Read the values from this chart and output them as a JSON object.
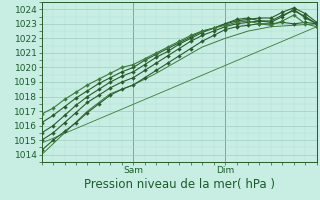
{
  "title": "Pression niveau de la mer( hPa )",
  "ylabel_values": [
    1014,
    1015,
    1016,
    1017,
    1018,
    1019,
    1020,
    1021,
    1022,
    1023,
    1024
  ],
  "ylim": [
    1013.8,
    1024.5
  ],
  "xlim": [
    0,
    72
  ],
  "background_color": "#c8eee4",
  "grid_color_minor": "#b0ddd4",
  "grid_color_major": "#a0ccc4",
  "line_color_dark": "#2a5c2a",
  "x_ticks": [
    24,
    48
  ],
  "x_tick_labels": [
    "Sam",
    "Dim"
  ],
  "title_color": "#1a5c2a",
  "title_fontsize": 8.5,
  "tick_fontsize": 6.5,
  "series": [
    {
      "x": [
        0,
        3,
        6,
        9,
        12,
        15,
        18,
        21,
        24,
        27,
        30,
        33,
        36,
        39,
        42,
        45,
        48,
        51,
        54,
        57,
        60,
        63,
        66,
        69,
        72
      ],
      "y": [
        1014.3,
        1015.0,
        1015.6,
        1016.2,
        1016.9,
        1017.5,
        1018.1,
        1018.5,
        1018.8,
        1019.3,
        1019.8,
        1020.3,
        1020.8,
        1021.3,
        1021.8,
        1022.2,
        1022.6,
        1022.8,
        1022.9,
        1023.0,
        1023.0,
        1023.1,
        1023.0,
        1023.1,
        1023.0
      ],
      "marker": "D",
      "lw": 0.8,
      "ms": 2.0,
      "color": "#2a5c2a"
    },
    {
      "x": [
        0,
        3,
        6,
        9,
        12,
        15,
        18,
        21,
        24,
        27,
        30,
        33,
        36,
        39,
        42,
        45,
        48,
        51,
        54,
        57,
        60,
        63,
        66,
        69,
        72
      ],
      "y": [
        1015.0,
        1015.5,
        1016.2,
        1016.9,
        1017.6,
        1018.1,
        1018.6,
        1019.0,
        1019.3,
        1019.8,
        1020.3,
        1020.8,
        1021.3,
        1021.8,
        1022.2,
        1022.5,
        1022.8,
        1023.0,
        1023.1,
        1023.2,
        1023.2,
        1023.6,
        1023.9,
        1023.5,
        1023.0
      ],
      "marker": "D",
      "lw": 0.8,
      "ms": 2.0,
      "color": "#2a5c2a"
    },
    {
      "x": [
        0,
        3,
        6,
        9,
        12,
        15,
        18,
        21,
        24,
        27,
        30,
        33,
        36,
        39,
        42,
        45,
        48,
        51,
        54,
        57,
        60,
        63,
        66,
        69,
        72
      ],
      "y": [
        1015.5,
        1016.0,
        1016.7,
        1017.4,
        1018.0,
        1018.5,
        1019.0,
        1019.4,
        1019.7,
        1020.2,
        1020.7,
        1021.1,
        1021.6,
        1022.0,
        1022.4,
        1022.7,
        1023.0,
        1023.2,
        1023.3,
        1023.4,
        1023.4,
        1023.8,
        1024.1,
        1023.7,
        1023.1
      ],
      "marker": "D",
      "lw": 0.8,
      "ms": 2.0,
      "color": "#2a5c2a"
    },
    {
      "x": [
        0,
        3,
        6,
        9,
        12,
        15,
        18,
        21,
        24,
        27,
        30,
        33,
        36,
        39,
        42,
        45,
        48,
        51,
        54,
        57,
        60,
        63,
        66,
        69,
        72
      ],
      "y": [
        1016.2,
        1016.7,
        1017.3,
        1017.9,
        1018.4,
        1018.9,
        1019.3,
        1019.7,
        1020.0,
        1020.5,
        1020.9,
        1021.3,
        1021.7,
        1022.1,
        1022.5,
        1022.7,
        1023.0,
        1023.3,
        1023.4,
        1023.2,
        1023.1,
        1023.5,
        1024.0,
        1023.4,
        1023.0
      ],
      "marker": "D",
      "lw": 0.8,
      "ms": 2.0,
      "color": "#2a5c2a"
    },
    {
      "x": [
        0,
        3,
        6,
        9,
        12,
        15,
        18,
        21,
        24,
        27,
        30,
        33,
        36,
        39,
        42,
        45,
        48,
        51,
        54,
        57,
        60,
        63,
        66,
        69,
        72
      ],
      "y": [
        1016.8,
        1017.2,
        1017.8,
        1018.3,
        1018.8,
        1019.2,
        1019.6,
        1020.0,
        1020.2,
        1020.6,
        1021.0,
        1021.4,
        1021.8,
        1022.2,
        1022.5,
        1022.7,
        1022.9,
        1023.1,
        1023.2,
        1023.0,
        1022.9,
        1023.2,
        1023.6,
        1023.0,
        1022.8
      ],
      "marker": "D",
      "lw": 0.8,
      "ms": 2.0,
      "color": "#3a7a3a"
    },
    {
      "x": [
        0,
        6,
        12,
        18,
        24,
        30,
        36,
        42,
        48,
        54,
        60,
        66,
        72
      ],
      "y": [
        1014.0,
        1015.5,
        1017.0,
        1018.2,
        1018.8,
        1019.6,
        1020.5,
        1021.4,
        1022.0,
        1022.5,
        1022.8,
        1022.9,
        1023.0
      ],
      "marker": null,
      "lw": 0.7,
      "ms": 0,
      "color": "#3a7a3a"
    },
    {
      "x": [
        0,
        72
      ],
      "y": [
        1014.8,
        1022.8
      ],
      "marker": null,
      "lw": 0.6,
      "ms": 0,
      "color": "#3a7a3a"
    }
  ]
}
